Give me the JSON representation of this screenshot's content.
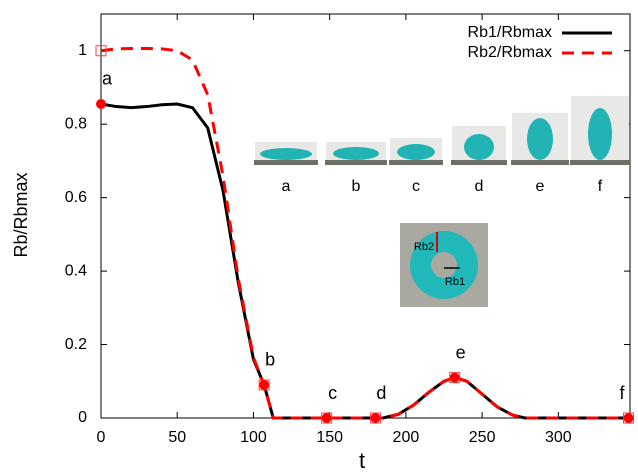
{
  "chart_data": {
    "type": "line",
    "x_label": "t",
    "y_label": "Rb/Rbmax",
    "xlim": [
      0,
      347
    ],
    "ylim": [
      0,
      1.1
    ],
    "xticks": [
      0,
      50,
      100,
      150,
      200,
      250,
      300
    ],
    "yticks": [
      0,
      0.2,
      0.4,
      0.6,
      0.8,
      1
    ],
    "legend": "upper right",
    "x": [
      0,
      10,
      20,
      30,
      40,
      50,
      60,
      70,
      80,
      90,
      100,
      107,
      113,
      120,
      150,
      185,
      195,
      205,
      215,
      225,
      232,
      240,
      250,
      260,
      270,
      278,
      300,
      346
    ],
    "series": [
      {
        "name": "Rb1/Rbmax",
        "color": "#000000",
        "dash": false,
        "values": [
          0.855,
          0.848,
          0.845,
          0.848,
          0.853,
          0.855,
          0.845,
          0.79,
          0.62,
          0.37,
          0.16,
          0.09,
          0,
          0,
          0,
          0,
          0.01,
          0.035,
          0.07,
          0.1,
          0.11,
          0.1,
          0.065,
          0.03,
          0.008,
          0,
          0,
          0
        ]
      },
      {
        "name": "Rb2/Rbmax",
        "color": "#ff0000",
        "dash": true,
        "values": [
          1.0,
          1.005,
          1.006,
          1.006,
          1.005,
          1.0,
          0.975,
          0.88,
          0.66,
          0.38,
          0.165,
          0.09,
          0,
          0,
          0,
          0,
          0.01,
          0.035,
          0.07,
          0.1,
          0.11,
          0.1,
          0.065,
          0.03,
          0.008,
          0,
          0,
          0
        ]
      }
    ],
    "points": {
      "x": [
        0,
        107,
        148,
        180,
        232,
        346
      ],
      "labels": [
        "a",
        "b",
        "c",
        "d",
        "e",
        "f"
      ],
      "rb1": [
        0.855,
        0.09,
        0,
        0,
        0.11,
        0
      ],
      "rb2": [
        1.0,
        0.09,
        0,
        0,
        0.11,
        0
      ]
    },
    "insets": {
      "labels": [
        "a",
        "b",
        "c",
        "d",
        "e",
        "f"
      ],
      "torus_labels": [
        "Rb2",
        "Rb1"
      ]
    }
  }
}
